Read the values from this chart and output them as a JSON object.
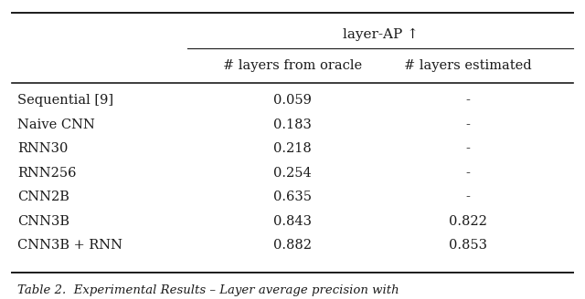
{
  "title_top": "layer-AP ↑",
  "col_headers": [
    "# layers from oracle",
    "# layers estimated"
  ],
  "rows": [
    [
      "Sequential [9]",
      "0.059",
      "-"
    ],
    [
      "Naive CNN",
      "0.183",
      "-"
    ],
    [
      "RNN30",
      "0.218",
      "-"
    ],
    [
      "RNN256",
      "0.254",
      "-"
    ],
    [
      "CNN2B",
      "0.635",
      "-"
    ],
    [
      "CNN3B",
      "0.843",
      "0.822"
    ],
    [
      "CNN3B + RNN",
      "0.882",
      "0.853"
    ]
  ],
  "bg_color": "#ffffff",
  "text_color": "#1a1a1a",
  "caption": "Table 2.  Experimental Results – Layer average precision with",
  "fontsize": 10.5,
  "caption_fontsize": 9.5
}
